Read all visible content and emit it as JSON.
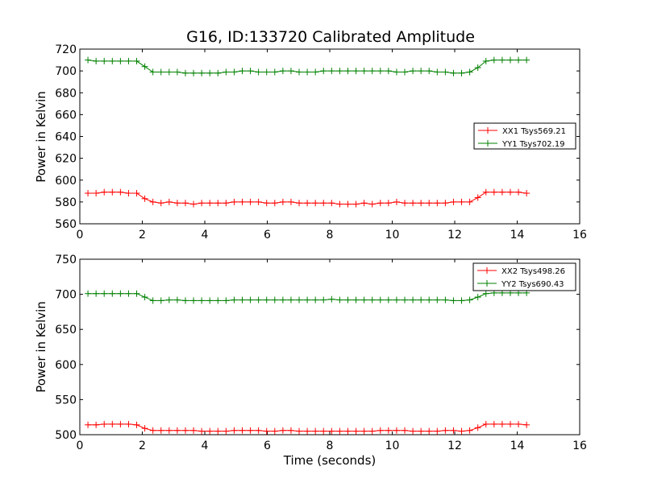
{
  "chart_data": [
    {
      "type": "line",
      "title": "G16, ID:133720 Calibrated Amplitude",
      "xlabel": "",
      "ylabel": "Power in Kelvin",
      "xlim": [
        0,
        16
      ],
      "ylim": [
        560,
        720
      ],
      "xticks": [
        0,
        2,
        4,
        6,
        8,
        10,
        12,
        14,
        16
      ],
      "yticks": [
        560,
        580,
        600,
        620,
        640,
        660,
        680,
        700,
        720
      ],
      "legend_position": "center-right",
      "grid": false,
      "x": [
        0.26,
        0.52,
        0.78,
        1.04,
        1.3,
        1.56,
        1.82,
        2.08,
        2.34,
        2.6,
        2.86,
        3.12,
        3.38,
        3.64,
        3.9,
        4.16,
        4.42,
        4.68,
        4.94,
        5.2,
        5.46,
        5.72,
        5.98,
        6.24,
        6.5,
        6.76,
        7.02,
        7.28,
        7.54,
        7.8,
        8.06,
        8.32,
        8.58,
        8.84,
        9.1,
        9.36,
        9.62,
        9.88,
        10.14,
        10.4,
        10.66,
        10.92,
        11.18,
        11.44,
        11.7,
        11.96,
        12.22,
        12.48,
        12.74,
        13.0,
        13.26,
        13.52,
        13.78,
        14.04,
        14.3
      ],
      "series": [
        {
          "name": "XX1 Tsys569.21",
          "color": "#ff0000",
          "values": [
            588,
            588,
            589,
            589,
            589,
            588,
            588,
            583,
            580,
            579,
            580,
            579,
            579,
            578,
            579,
            579,
            579,
            579,
            580,
            580,
            580,
            580,
            579,
            579,
            580,
            580,
            579,
            579,
            579,
            579,
            579,
            578,
            578,
            578,
            579,
            578,
            579,
            579,
            580,
            579,
            579,
            579,
            579,
            579,
            579,
            580,
            580,
            580,
            584,
            589,
            589,
            589,
            589,
            589,
            588
          ]
        },
        {
          "name": "YY1 Tsys702.19",
          "color": "#008000",
          "values": [
            710,
            709,
            709,
            709,
            709,
            709,
            709,
            704,
            699,
            699,
            699,
            699,
            698,
            698,
            698,
            698,
            698,
            699,
            699,
            700,
            700,
            699,
            699,
            699,
            700,
            700,
            699,
            699,
            699,
            700,
            700,
            700,
            700,
            700,
            700,
            700,
            700,
            700,
            699,
            699,
            700,
            700,
            700,
            699,
            699,
            698,
            698,
            699,
            703,
            709,
            710,
            710,
            710,
            710,
            710
          ]
        }
      ]
    },
    {
      "type": "line",
      "title": "",
      "xlabel": "Time (seconds)",
      "ylabel": "Power in Kelvin",
      "xlim": [
        0,
        16
      ],
      "ylim": [
        500,
        750
      ],
      "xticks": [
        0,
        2,
        4,
        6,
        8,
        10,
        12,
        14,
        16
      ],
      "yticks": [
        500,
        550,
        600,
        650,
        700,
        750
      ],
      "legend_position": "top-right",
      "grid": false,
      "x": [
        0.26,
        0.52,
        0.78,
        1.04,
        1.3,
        1.56,
        1.82,
        2.08,
        2.34,
        2.6,
        2.86,
        3.12,
        3.38,
        3.64,
        3.9,
        4.16,
        4.42,
        4.68,
        4.94,
        5.2,
        5.46,
        5.72,
        5.98,
        6.24,
        6.5,
        6.76,
        7.02,
        7.28,
        7.54,
        7.8,
        8.06,
        8.32,
        8.58,
        8.84,
        9.1,
        9.36,
        9.62,
        9.88,
        10.14,
        10.4,
        10.66,
        10.92,
        11.18,
        11.44,
        11.7,
        11.96,
        12.22,
        12.48,
        12.74,
        13.0,
        13.26,
        13.52,
        13.78,
        14.04,
        14.3
      ],
      "series": [
        {
          "name": "XX2 Tsys498.26",
          "color": "#ff0000",
          "values": [
            514,
            514,
            515,
            515,
            515,
            515,
            514,
            509,
            506,
            506,
            506,
            506,
            506,
            506,
            505,
            505,
            505,
            505,
            506,
            506,
            506,
            506,
            505,
            505,
            506,
            506,
            505,
            505,
            505,
            505,
            505,
            505,
            505,
            505,
            505,
            505,
            506,
            506,
            506,
            506,
            505,
            505,
            505,
            505,
            506,
            506,
            505,
            506,
            510,
            515,
            515,
            515,
            515,
            515,
            514
          ]
        },
        {
          "name": "YY2 Tsys690.43",
          "color": "#008000",
          "values": [
            701,
            701,
            701,
            701,
            701,
            701,
            701,
            696,
            691,
            691,
            692,
            692,
            691,
            691,
            691,
            691,
            691,
            691,
            692,
            692,
            692,
            692,
            692,
            692,
            692,
            692,
            692,
            692,
            692,
            692,
            693,
            692,
            692,
            692,
            692,
            692,
            692,
            692,
            692,
            692,
            692,
            692,
            692,
            692,
            692,
            691,
            691,
            692,
            696,
            701,
            702,
            702,
            702,
            702,
            702
          ]
        }
      ]
    }
  ]
}
